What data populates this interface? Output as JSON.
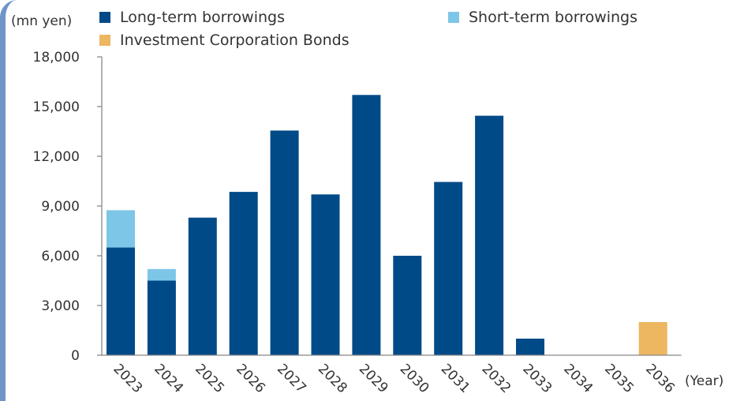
{
  "chart_data": {
    "type": "bar",
    "stacked": true,
    "categories": [
      "2023",
      "2024",
      "2025",
      "2026",
      "2027",
      "2028",
      "2029",
      "2030",
      "2031",
      "2032",
      "2033",
      "2034",
      "2035",
      "2036"
    ],
    "series": [
      {
        "name": "Long-term borrowings",
        "color": "#004a87",
        "values": [
          6500,
          4500,
          8300,
          9850,
          13550,
          9700,
          15700,
          6000,
          10450,
          14450,
          1000,
          0,
          0,
          0
        ]
      },
      {
        "name": "Short-term borrowings",
        "color": "#7ec6e8",
        "values": [
          2250,
          700,
          0,
          0,
          0,
          0,
          0,
          0,
          0,
          0,
          0,
          0,
          0,
          0
        ]
      },
      {
        "name": "Investment Corporation Bonds",
        "color": "#edb660",
        "values": [
          0,
          0,
          0,
          0,
          0,
          0,
          0,
          0,
          0,
          0,
          0,
          0,
          0,
          2000
        ]
      }
    ],
    "ylabel": "(mn yen)",
    "xlabel": "(Year)",
    "ylim": [
      0,
      18000
    ],
    "yticks": [
      "0",
      "3,000",
      "6,000",
      "9,000",
      "12,000",
      "15,000",
      "18,000"
    ],
    "grid": false,
    "legend_position": "top"
  }
}
